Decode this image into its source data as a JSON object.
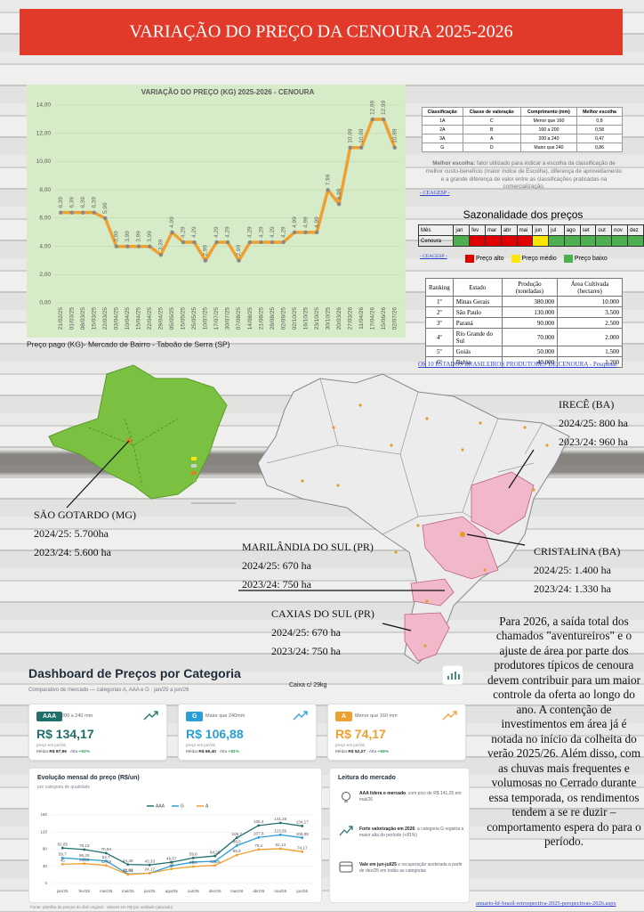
{
  "header": {
    "title": "VARIAÇÃO DO PREÇO DA CENOURA 2025-2026"
  },
  "chart_data": [
    {
      "type": "line",
      "title": "VARIAÇÃO DO PREÇO (KG) 2025-2026 - CENOURA",
      "categories": [
        "21/02/25",
        "01/03/25",
        "08/03/25",
        "15/03/25",
        "22/03/25",
        "03/04/25",
        "10/04/25",
        "15/04/25",
        "22/04/25",
        "29/04/25",
        "05/05/25",
        "15/05/25",
        "25/05/25",
        "10/07/25",
        "17/07/25",
        "30/07/25",
        "07/08/25",
        "14/08/25",
        "21/08/25",
        "28/08/25",
        "02/09/25",
        "02/10/25",
        "16/10/25",
        "23/10/25",
        "30/10/25",
        "20/03/26",
        "27/03/26",
        "11/04/26",
        "17/04/26",
        "15/06/26",
        "02/07/26"
      ],
      "values": [
        6.39,
        6.39,
        6.39,
        6.39,
        5.99,
        3.99,
        3.99,
        3.99,
        3.99,
        3.39,
        4.99,
        4.29,
        4.29,
        2.99,
        4.29,
        4.29,
        2.99,
        4.29,
        4.29,
        4.29,
        4.29,
        4.99,
        4.99,
        4.99,
        7.99,
        6.99,
        10.99,
        10.99,
        12.99,
        12.99,
        10.99
      ],
      "value_labels": [
        "6,39",
        "6,39",
        "6,39",
        "6,39",
        "5,99",
        "3,99",
        "3,99",
        "3,99",
        "3,99",
        "3,39",
        "4,99",
        "4,29",
        "4,29",
        "2,99",
        "4,29",
        "4,29",
        "2,99",
        "4,29",
        "4,29",
        "4,29",
        "4,29",
        "4,99",
        "4,99",
        "4,99",
        "7,99",
        "6,99",
        "10,99",
        "10,99",
        "12,99",
        "12,99",
        "10,99"
      ],
      "color": "#f0a030",
      "ylim": [
        0,
        14
      ],
      "yticks": [
        {
          "value": 0,
          "label": "0,00"
        },
        {
          "value": 2,
          "label": "2,00"
        },
        {
          "value": 4,
          "label": "4,00"
        },
        {
          "value": 6,
          "label": "6,00"
        },
        {
          "value": 8,
          "label": "8,00"
        },
        {
          "value": 10,
          "label": "10,00"
        },
        {
          "value": 12,
          "label": "12,00"
        },
        {
          "value": 14,
          "label": "14,00"
        }
      ],
      "grid": true,
      "caption": "Preço pago (KG)- Mercado de Bairro - Taboão de Serra (SP)"
    },
    {
      "type": "line",
      "title": "Evolução mensal do preço (R$/un)",
      "subtitle": "por categoria de qualidade",
      "categories": [
        "jan/25",
        "fev/25",
        "mar/25",
        "mai/25",
        "jun/25",
        "ago/25",
        "out/25",
        "dez/25",
        "mar/26",
        "abr/26",
        "mai/26",
        "jun/26"
      ],
      "series": [
        {
          "name": "AAA",
          "color": "#1f6f6b",
          "values": [
            82.85,
            79.15,
            70.94,
            44.38,
            43.33,
            49.67,
            59.8,
            64.25,
            106.7,
            135.4,
            141.25,
            134.17
          ],
          "value_labels": [
            "82,85",
            "79,15",
            "70,94",
            "44,38",
            "43,33",
            "49,67",
            "59,8",
            "64,25",
            "106,7",
            "135,4",
            "141,25",
            "134,17"
          ]
        },
        {
          "name": "G",
          "color": "#2a9fd6",
          "values": [
            59.7,
            56.25,
            52.7,
            22.09,
            24.17,
            41,
            50,
            52,
            88.5,
            107.6,
            113.59,
            106.88
          ],
          "value_labels": [
            "59,7",
            "56,25",
            "52,7",
            "22,09",
            null,
            "41",
            null,
            null,
            "88,5",
            "107,6",
            "113,59",
            "106,88"
          ]
        },
        {
          "name": "A",
          "color": "#f0a030",
          "values": [
            45,
            46.36,
            42.19,
            20.91,
            24.17,
            34,
            39.6,
            42.25,
            66.5,
            79.4,
            81.13,
            74.17
          ],
          "value_labels": [
            "45",
            "46,36",
            "42,19",
            "20,91",
            "24,17",
            "34",
            "39,6",
            "42,25",
            "66,5",
            "79,4",
            "81,13",
            "74,17"
          ]
        }
      ],
      "ylim": [
        0,
        160
      ],
      "yticks": [
        0,
        40,
        80,
        120,
        160
      ],
      "grid": true
    }
  ],
  "class_table": {
    "header": [
      "Classificação",
      "Classe de valoração",
      "Comprimento (mm)",
      "Melhor escolha"
    ],
    "rows": [
      [
        "1A",
        "C",
        "Menor que 160",
        "0,8"
      ],
      [
        "2A",
        "B",
        "160 a 200",
        "0,58"
      ],
      [
        "3A",
        "A",
        "200 a 240",
        "0,47"
      ],
      [
        "G",
        "D",
        "Maior que 240",
        "0,86"
      ]
    ],
    "note_label": "Melhor escolha:",
    "note": "fator utilizado para indicar a escolha da classificação de melhor custo-benefício (maior índice de Escolha), diferença de aproveitamento e a grande diferença de valor entre as classificações praticadas na comercialização.",
    "source": "- CEAGESP -"
  },
  "season": {
    "title": "Sazonalidade dos preços",
    "header": "Mês",
    "months": [
      "jan",
      "fev",
      "mar",
      "abr",
      "mai",
      "jun",
      "jul",
      "ago",
      "set",
      "out",
      "nov",
      "dez"
    ],
    "row_label": "Cenoura",
    "cell_colors": [
      "#4caf50",
      "#e00000",
      "#e00000",
      "#e00000",
      "#e00000",
      "#ffe600",
      "#4caf50",
      "#4caf50",
      "#4caf50",
      "#4caf50",
      "#4caf50",
      "#4caf50"
    ],
    "source": "- CEAGESP -",
    "legend": [
      {
        "label": "Preço alto",
        "color": "#e00000"
      },
      {
        "label": "Preço médio",
        "color": "#ffe600"
      },
      {
        "label": "Preço baixo",
        "color": "#4caf50"
      }
    ]
  },
  "ranking": {
    "header": [
      "Ranking",
      "Estado",
      "Produção (toneladas)",
      "Área Cultivada (hectares)"
    ],
    "rows": [
      [
        "1º",
        "Minas Gerais",
        "380.000",
        "10.000"
      ],
      [
        "2º",
        "São Paulo",
        "130.000",
        "3.500"
      ],
      [
        "3º",
        "Paraná",
        "90.000",
        "2.500"
      ],
      [
        "4º",
        "Rio Grande do Sul",
        "70.000",
        "2.000"
      ],
      [
        "5º",
        "Goiás",
        "50.000",
        "1.500"
      ],
      [
        "6º",
        "Bahia",
        "40.000",
        "1.200"
      ]
    ],
    "link": "OS 10 ESTADOS BRASILEIROS PRODUTORES DE CENOURA - Pesquisar"
  },
  "map_labels": [
    {
      "place": "IRECÊ (BA)",
      "a": "2024/25: 800 ha",
      "b": "2023/24:  960 ha"
    },
    {
      "place": "SÃO GOTARDO (MG)",
      "a": "2024/25: 5.700ha",
      "b": "2023/24: 5.600 ha"
    },
    {
      "place": "MARILÂNDIA DO SUL (PR)",
      "a": "2024/25: 670 ha",
      "b": "2023/24: 750 ha"
    },
    {
      "place": "CRISTALINA (BA)",
      "a": "2024/25:  1.400 ha",
      "b": "2023/24:  1.330 ha"
    },
    {
      "place": "CAXIAS DO SUL (PR)",
      "a": "2024/25: 670 ha",
      "b": "2023/24: 750 ha"
    }
  ],
  "paragraph": {
    "text": "Para 2026, a saída total dos chamados \"aventureiros\" e o ajuste de área por parte dos produtores típicos de cenoura devem contribuir para um maior controle da oferta ao longo do ano. A contenção de investimentos em área já é notada no início da colheita do verão 2025/26. Além disso, com as chuvas mais frequentes e volumosas no Cerrado durante essa temporada, os rendimentos tendem a se re duzir – comportamento espera do para o período.",
    "link": "anuario-hf-brasil-retrospectiva-2025-perspectivas-2026.aspx"
  },
  "dashboard": {
    "title": "Dashboard de Preços por Categoria",
    "subtitle": "Comparativo de mercado — categorias A, AAA e G · jan/25 a jun/26",
    "unit": "Caixa c/ 29kg",
    "cards": [
      {
        "badge": "AAA",
        "size": "200 a 240 mm",
        "price": "R$ 134,17",
        "note": "preço em jun/26",
        "avg_label": "Média",
        "avg": "R$ 87,96",
        "high_label": "Alta",
        "high": "+62%"
      },
      {
        "badge": "G",
        "size": "Maior que 240mm",
        "price": "R$ 106,88",
        "note": "preço em jun/26",
        "avg_label": "Média",
        "avg": "R$ 66,40",
        "high_label": "Alta",
        "high": "+81%"
      },
      {
        "badge": "A",
        "size": "Menor que 160 mm",
        "price": "R$ 74,17",
        "note": "preço em jun/26",
        "avg_label": "Média",
        "avg": "R$ 52,27",
        "high_label": "Alta",
        "high": "+65%"
      }
    ],
    "reading": {
      "title": "Leitura do mercado",
      "items": [
        {
          "lead": "AAA lidera o mercado",
          "text": ", com pico de R$ 141,25 em mai/26"
        },
        {
          "lead": "Forte valorização em 2026",
          "text": ": a categoria G registra a maior alta do período (+81%)"
        },
        {
          "lead": "Vale em jun-jul/25",
          "text": " e recuperação acelerada a partir de dez/25 em todas as categorias"
        }
      ]
    },
    "footer": "Fonte: planilha de preços do disk original · valores em R$ por unidade (atacado)"
  }
}
